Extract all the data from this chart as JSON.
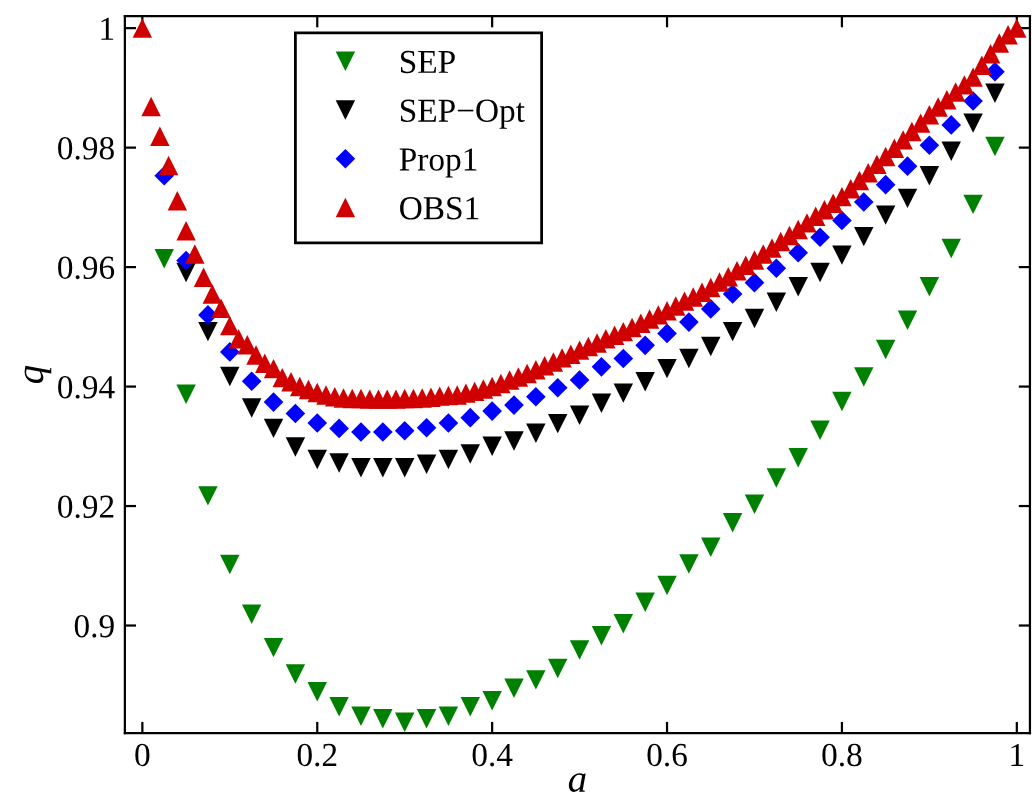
{
  "chart_data": {
    "type": "scatter",
    "xlabel": "a",
    "ylabel": "q",
    "xlim": [
      -0.02,
      1.015
    ],
    "ylim": [
      0.882,
      1.002
    ],
    "xticks": [
      0,
      0.2,
      0.4,
      0.6,
      0.8,
      1
    ],
    "yticks": [
      0.9,
      0.92,
      0.94,
      0.96,
      0.98,
      1
    ],
    "grid": false,
    "legend": "top left",
    "series": [
      {
        "name": "SEP",
        "color": "#008000",
        "marker": "triangle-down",
        "x": [
          0.025,
          0.05,
          0.075,
          0.1,
          0.125,
          0.15,
          0.175,
          0.2,
          0.225,
          0.25,
          0.275,
          0.3,
          0.325,
          0.35,
          0.375,
          0.4,
          0.425,
          0.45,
          0.475,
          0.5,
          0.525,
          0.55,
          0.575,
          0.6,
          0.625,
          0.65,
          0.675,
          0.7,
          0.725,
          0.75,
          0.775,
          0.8,
          0.825,
          0.85,
          0.875,
          0.9,
          0.925,
          0.95,
          0.975
        ],
        "values": [
          0.9614,
          0.9387,
          0.9217,
          0.9102,
          0.9019,
          0.8963,
          0.8919,
          0.8889,
          0.8864,
          0.8848,
          0.8844,
          0.8838,
          0.8844,
          0.8848,
          0.8864,
          0.8874,
          0.8895,
          0.8909,
          0.8928,
          0.8959,
          0.8983,
          0.9003,
          0.9039,
          0.9067,
          0.9103,
          0.9131,
          0.9172,
          0.9203,
          0.9247,
          0.9281,
          0.9327,
          0.9375,
          0.9416,
          0.9462,
          0.9511,
          0.9567,
          0.9631,
          0.9705,
          0.9802
        ]
      },
      {
        "name": "SEP−Opt",
        "color": "#000000",
        "marker": "triangle-down",
        "x": [
          0.05,
          0.075,
          0.1,
          0.125,
          0.15,
          0.175,
          0.2,
          0.225,
          0.25,
          0.275,
          0.3,
          0.325,
          0.35,
          0.375,
          0.4,
          0.425,
          0.45,
          0.475,
          0.5,
          0.525,
          0.55,
          0.575,
          0.6,
          0.625,
          0.65,
          0.675,
          0.7,
          0.725,
          0.75,
          0.775,
          0.8,
          0.825,
          0.85,
          0.875,
          0.9,
          0.925,
          0.95,
          0.975
        ],
        "values": [
          0.9591,
          0.9492,
          0.9417,
          0.9364,
          0.933,
          0.9299,
          0.9278,
          0.9272,
          0.9264,
          0.9264,
          0.9264,
          0.927,
          0.9278,
          0.9287,
          0.93,
          0.9309,
          0.9322,
          0.9338,
          0.9352,
          0.9372,
          0.9389,
          0.9408,
          0.943,
          0.9447,
          0.9467,
          0.9492,
          0.9514,
          0.9541,
          0.9567,
          0.9591,
          0.962,
          0.9651,
          0.9687,
          0.9715,
          0.9753,
          0.9794,
          0.9841,
          0.9891
        ]
      },
      {
        "name": "Prop1",
        "color": "#0000ff",
        "marker": "diamond",
        "x": [
          0.025,
          0.05,
          0.075,
          0.1,
          0.125,
          0.15,
          0.175,
          0.2,
          0.225,
          0.25,
          0.275,
          0.3,
          0.325,
          0.35,
          0.375,
          0.4,
          0.425,
          0.45,
          0.475,
          0.5,
          0.525,
          0.55,
          0.575,
          0.6,
          0.625,
          0.65,
          0.675,
          0.7,
          0.725,
          0.75,
          0.775,
          0.8,
          0.825,
          0.85,
          0.875,
          0.9,
          0.925,
          0.95,
          0.975
        ],
        "values": [
          0.9753,
          0.9611,
          0.952,
          0.9458,
          0.9409,
          0.9374,
          0.9355,
          0.9339,
          0.933,
          0.9324,
          0.9324,
          0.9326,
          0.9331,
          0.9339,
          0.9348,
          0.9359,
          0.9369,
          0.9383,
          0.9398,
          0.9411,
          0.9433,
          0.9447,
          0.9469,
          0.9489,
          0.9508,
          0.953,
          0.9555,
          0.9574,
          0.9598,
          0.9624,
          0.965,
          0.9678,
          0.9709,
          0.9738,
          0.9769,
          0.9804,
          0.9838,
          0.9878,
          0.9927
        ]
      },
      {
        "name": "OBS1",
        "color": "#d00000",
        "marker": "triangle",
        "x": [
          0,
          0.01,
          0.02,
          0.03,
          0.04,
          0.05,
          0.06,
          0.07,
          0.08,
          0.09,
          0.1,
          0.11,
          0.12,
          0.13,
          0.14,
          0.15,
          0.16,
          0.17,
          0.18,
          0.19,
          0.2,
          0.21,
          0.22,
          0.23,
          0.24,
          0.25,
          0.26,
          0.27,
          0.28,
          0.29,
          0.3,
          0.31,
          0.32,
          0.33,
          0.34,
          0.35,
          0.36,
          0.37,
          0.38,
          0.39,
          0.4,
          0.41,
          0.42,
          0.43,
          0.44,
          0.45,
          0.46,
          0.47,
          0.48,
          0.49,
          0.5,
          0.51,
          0.52,
          0.53,
          0.54,
          0.55,
          0.56,
          0.57,
          0.58,
          0.59,
          0.6,
          0.61,
          0.62,
          0.63,
          0.64,
          0.65,
          0.66,
          0.67,
          0.68,
          0.69,
          0.7,
          0.71,
          0.72,
          0.73,
          0.74,
          0.75,
          0.76,
          0.77,
          0.78,
          0.79,
          0.8,
          0.81,
          0.82,
          0.83,
          0.84,
          0.85,
          0.86,
          0.87,
          0.88,
          0.89,
          0.9,
          0.91,
          0.92,
          0.93,
          0.94,
          0.95,
          0.96,
          0.97,
          0.98,
          0.99,
          1
        ],
        "values": [
          1.0,
          0.9869,
          0.9819,
          0.977,
          0.9711,
          0.9661,
          0.9622,
          0.9583,
          0.9555,
          0.9531,
          0.9502,
          0.948,
          0.947,
          0.9453,
          0.9439,
          0.943,
          0.9415,
          0.9408,
          0.94,
          0.9395,
          0.939,
          0.9386,
          0.9383,
          0.9381,
          0.938,
          0.938,
          0.9379,
          0.9379,
          0.9379,
          0.9379,
          0.938,
          0.938,
          0.9381,
          0.9382,
          0.9384,
          0.9385,
          0.9386,
          0.9389,
          0.9392,
          0.9396,
          0.94,
          0.9405,
          0.9411,
          0.9416,
          0.9422,
          0.9428,
          0.9435,
          0.9441,
          0.9448,
          0.9454,
          0.9461,
          0.9467,
          0.9473,
          0.948,
          0.9486,
          0.9492,
          0.9499,
          0.9506,
          0.9513,
          0.952,
          0.9527,
          0.9535,
          0.9543,
          0.955,
          0.9558,
          0.9566,
          0.9575,
          0.9584,
          0.9594,
          0.9603,
          0.9612,
          0.9622,
          0.9632,
          0.9643,
          0.9653,
          0.9663,
          0.9674,
          0.9685,
          0.9696,
          0.9707,
          0.9718,
          0.9731,
          0.9745,
          0.9758,
          0.9772,
          0.9785,
          0.9799,
          0.9813,
          0.9827,
          0.9841,
          0.9855,
          0.9868,
          0.988,
          0.9893,
          0.9905,
          0.9918,
          0.9938,
          0.9957,
          0.9975,
          0.9989,
          1.0
        ]
      }
    ]
  }
}
